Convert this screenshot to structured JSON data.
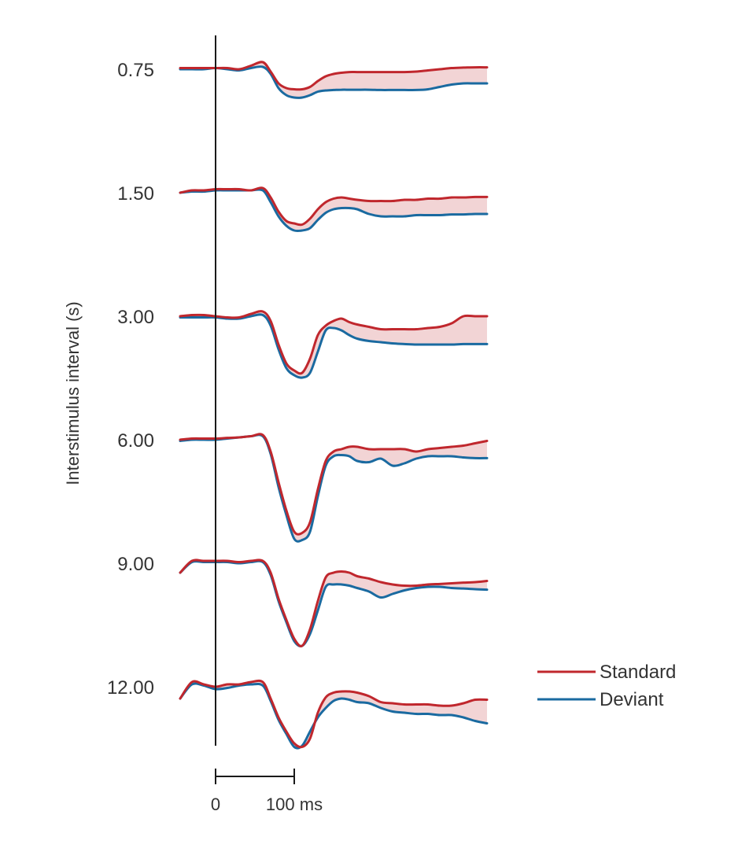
{
  "chart_data": {
    "type": "line",
    "title": "",
    "ylabel": "Interstimulus interval (s)",
    "xlabel": "",
    "x_unit": "ms",
    "time_range": [
      -45,
      345
    ],
    "stimulus_onset": 0,
    "scale_bar": {
      "start_label": "0",
      "end_label": "100 ms",
      "length": 100
    },
    "colors": {
      "standard": "#c0272d",
      "deviant": "#1a6aa0",
      "difference_fill": "#f2d4d5"
    },
    "legend": [
      {
        "name": "Standard",
        "key": "standard"
      },
      {
        "name": "Deviant",
        "key": "deviant"
      }
    ],
    "x": [
      -45,
      -30,
      -15,
      0,
      15,
      30,
      45,
      60,
      70,
      80,
      90,
      100,
      110,
      120,
      130,
      140,
      150,
      160,
      170,
      180,
      195,
      210,
      225,
      240,
      255,
      270,
      285,
      300,
      315,
      330,
      345
    ],
    "rows": [
      {
        "label": "0.75",
        "standard": [
          0.05,
          0.05,
          0.05,
          0.05,
          0.05,
          0.0,
          0.15,
          0.3,
          -0.1,
          -0.6,
          -0.8,
          -0.85,
          -0.85,
          -0.75,
          -0.5,
          -0.3,
          -0.2,
          -0.15,
          -0.12,
          -0.12,
          -0.12,
          -0.12,
          -0.12,
          -0.12,
          -0.1,
          -0.05,
          0.0,
          0.05,
          0.07,
          0.08,
          0.08
        ],
        "deviant": [
          0.0,
          0.0,
          0.0,
          0.05,
          0.0,
          -0.05,
          0.05,
          0.1,
          -0.2,
          -0.8,
          -1.1,
          -1.2,
          -1.2,
          -1.1,
          -0.95,
          -0.9,
          -0.88,
          -0.87,
          -0.87,
          -0.87,
          -0.87,
          -0.88,
          -0.88,
          -0.88,
          -0.88,
          -0.85,
          -0.75,
          -0.65,
          -0.6,
          -0.6,
          -0.6
        ]
      },
      {
        "label": "1.50",
        "standard": [
          0.0,
          0.1,
          0.1,
          0.15,
          0.15,
          0.15,
          0.1,
          0.2,
          -0.2,
          -0.8,
          -1.2,
          -1.3,
          -1.35,
          -1.1,
          -0.7,
          -0.4,
          -0.25,
          -0.2,
          -0.25,
          -0.3,
          -0.35,
          -0.35,
          -0.35,
          -0.3,
          -0.3,
          -0.25,
          -0.25,
          -0.2,
          -0.2,
          -0.18,
          -0.18
        ],
        "deviant": [
          0.0,
          0.05,
          0.05,
          0.1,
          0.1,
          0.1,
          0.1,
          0.1,
          -0.4,
          -1.0,
          -1.4,
          -1.6,
          -1.6,
          -1.5,
          -1.15,
          -0.85,
          -0.7,
          -0.65,
          -0.65,
          -0.7,
          -0.9,
          -1.0,
          -1.0,
          -1.0,
          -0.95,
          -0.95,
          -0.95,
          -0.92,
          -0.92,
          -0.9,
          -0.9
        ]
      },
      {
        "label": "3.00",
        "standard": [
          0.0,
          0.05,
          0.05,
          0.0,
          -0.05,
          -0.05,
          0.1,
          0.2,
          -0.2,
          -1.2,
          -2.0,
          -2.3,
          -2.4,
          -1.8,
          -0.8,
          -0.4,
          -0.2,
          -0.1,
          -0.25,
          -0.35,
          -0.45,
          -0.55,
          -0.55,
          -0.55,
          -0.55,
          -0.5,
          -0.45,
          -0.3,
          -0.0,
          -0.0,
          -0.0
        ],
        "deviant": [
          -0.05,
          -0.05,
          -0.05,
          -0.05,
          -0.1,
          -0.1,
          0.0,
          0.05,
          -0.4,
          -1.4,
          -2.2,
          -2.5,
          -2.6,
          -2.4,
          -1.5,
          -0.6,
          -0.5,
          -0.6,
          -0.8,
          -0.95,
          -1.05,
          -1.1,
          -1.15,
          -1.18,
          -1.2,
          -1.2,
          -1.2,
          -1.2,
          -1.18,
          -1.18,
          -1.18
        ]
      },
      {
        "label": "6.00",
        "standard": [
          0.0,
          0.05,
          0.05,
          0.05,
          0.08,
          0.1,
          0.15,
          0.2,
          -0.5,
          -1.8,
          -3.0,
          -3.9,
          -3.95,
          -3.5,
          -2.1,
          -0.9,
          -0.5,
          -0.4,
          -0.3,
          -0.3,
          -0.4,
          -0.4,
          -0.4,
          -0.4,
          -0.5,
          -0.4,
          -0.35,
          -0.3,
          -0.25,
          -0.15,
          -0.05
        ],
        "deviant": [
          -0.05,
          0.0,
          0.0,
          0.0,
          0.05,
          0.1,
          0.15,
          0.15,
          -0.6,
          -2.0,
          -3.2,
          -4.2,
          -4.25,
          -3.9,
          -2.4,
          -1.1,
          -0.7,
          -0.65,
          -0.7,
          -0.9,
          -0.95,
          -0.8,
          -1.1,
          -1.0,
          -0.8,
          -0.7,
          -0.7,
          -0.7,
          -0.75,
          -0.78,
          -0.78
        ]
      },
      {
        "label": "9.00",
        "standard": [
          -0.4,
          0.1,
          0.1,
          0.1,
          0.1,
          0.05,
          0.1,
          0.1,
          -0.4,
          -1.5,
          -2.4,
          -3.2,
          -3.5,
          -2.8,
          -1.6,
          -0.6,
          -0.4,
          -0.35,
          -0.4,
          -0.55,
          -0.65,
          -0.8,
          -0.9,
          -0.95,
          -0.95,
          -0.9,
          -0.88,
          -0.85,
          -0.82,
          -0.8,
          -0.75
        ],
        "deviant": [
          -0.4,
          0.05,
          0.05,
          0.05,
          0.05,
          0.0,
          0.05,
          0.05,
          -0.5,
          -1.6,
          -2.5,
          -3.3,
          -3.5,
          -3.0,
          -2.0,
          -1.0,
          -0.9,
          -0.9,
          -0.95,
          -1.05,
          -1.2,
          -1.45,
          -1.3,
          -1.15,
          -1.05,
          -1.0,
          -1.0,
          -1.05,
          -1.07,
          -1.1,
          -1.12
        ]
      },
      {
        "label": "12.00",
        "standard": [
          -0.5,
          0.2,
          0.1,
          0.0,
          0.1,
          0.1,
          0.2,
          0.2,
          -0.5,
          -1.3,
          -1.9,
          -2.4,
          -2.55,
          -2.2,
          -1.1,
          -0.45,
          -0.25,
          -0.2,
          -0.2,
          -0.25,
          -0.4,
          -0.65,
          -0.7,
          -0.75,
          -0.75,
          -0.75,
          -0.8,
          -0.8,
          -0.7,
          -0.55,
          -0.55
        ],
        "deviant": [
          -0.5,
          0.1,
          0.05,
          -0.1,
          -0.05,
          0.05,
          0.1,
          0.05,
          -0.6,
          -1.4,
          -2.0,
          -2.55,
          -2.5,
          -1.9,
          -1.3,
          -0.9,
          -0.6,
          -0.5,
          -0.55,
          -0.65,
          -0.7,
          -0.9,
          -1.05,
          -1.1,
          -1.15,
          -1.15,
          -1.2,
          -1.2,
          -1.3,
          -1.45,
          -1.55
        ]
      }
    ]
  }
}
